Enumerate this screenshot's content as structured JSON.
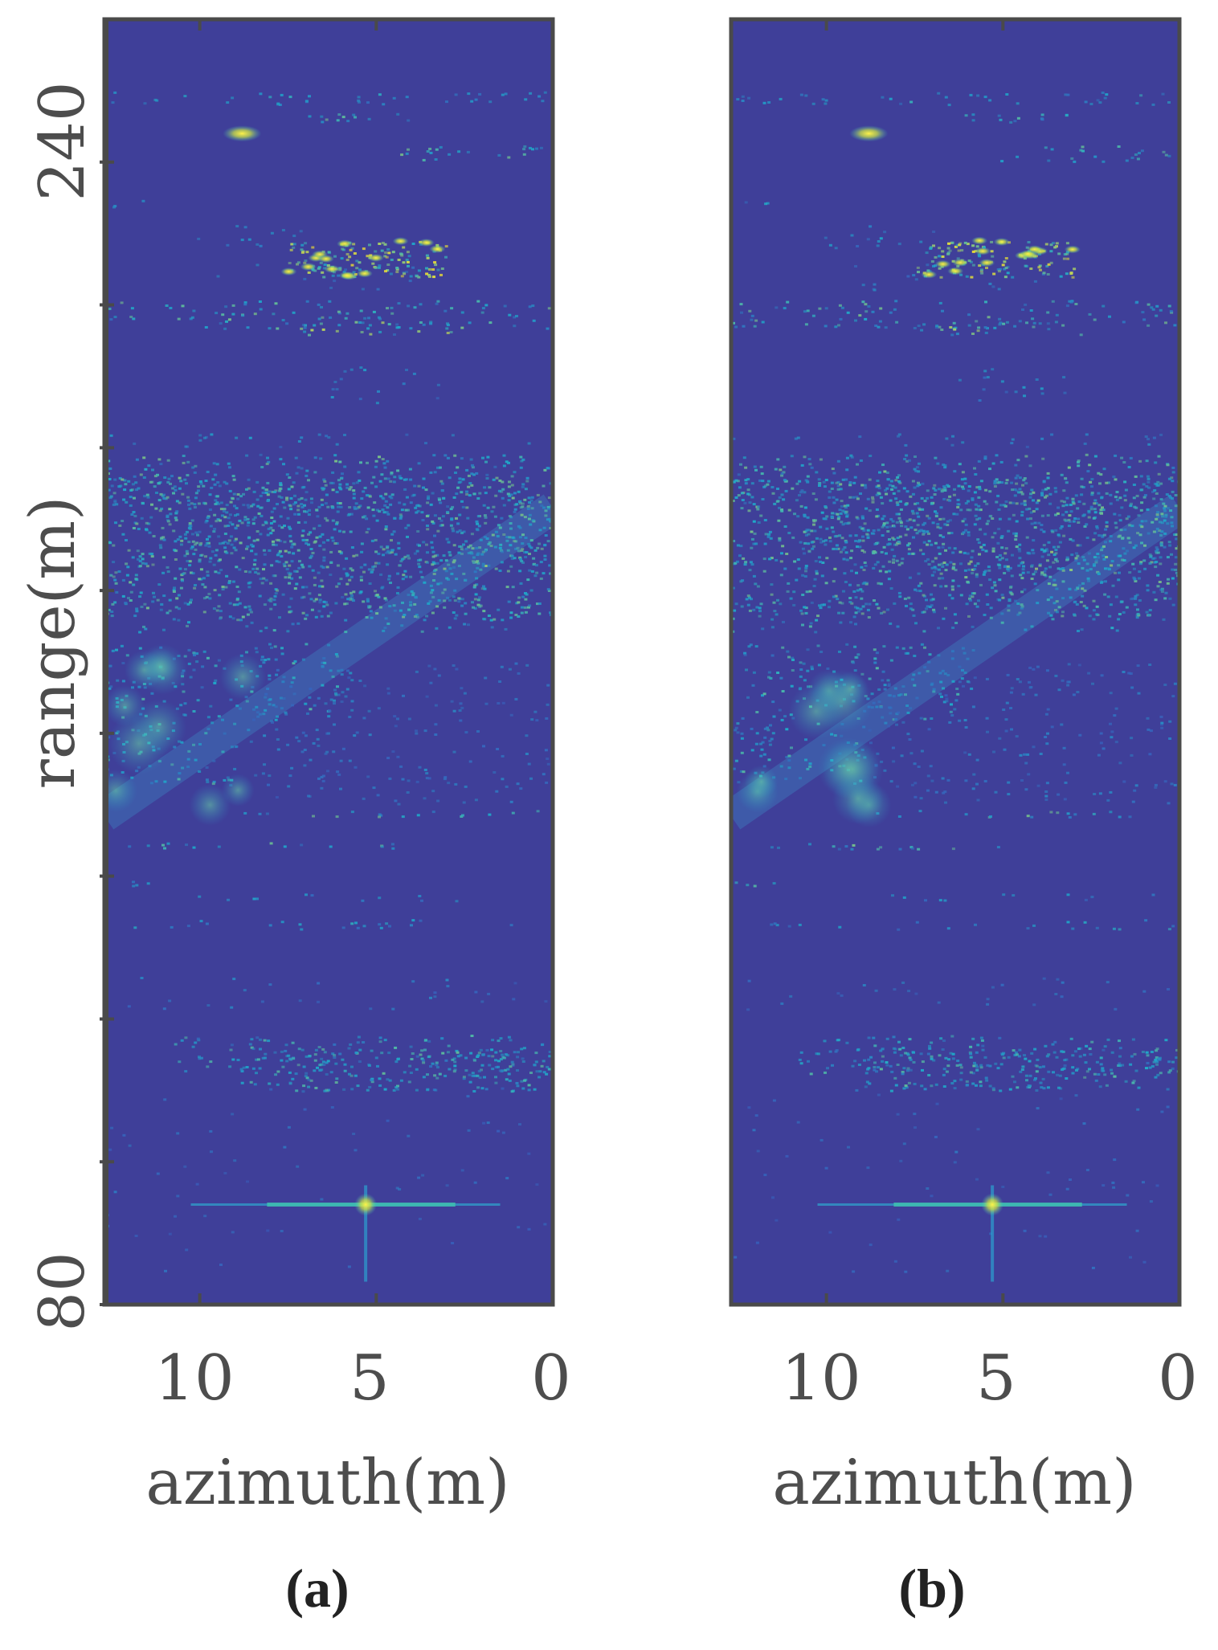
{
  "figure": {
    "panels": [
      {
        "label": "(a)",
        "xlabel": "azimuth(m)",
        "ylabel": "range(m)",
        "x_tick_labels": [
          "10",
          "5",
          "0"
        ],
        "y_tick_labels": [
          "240",
          "80"
        ]
      },
      {
        "label": "(b)",
        "xlabel": "azimuth(m)",
        "ylabel": "",
        "x_tick_labels": [
          "10",
          "5",
          "0"
        ],
        "y_tick_labels": []
      }
    ]
  },
  "chart_data": [
    {
      "type": "heatmap",
      "title": "",
      "panel_label": "(a)",
      "xlabel": "azimuth(m)",
      "ylabel": "range(m)",
      "xlim": [
        12.7,
        0
      ],
      "ylim": [
        80,
        260
      ],
      "x_ticks": [
        10,
        5,
        0
      ],
      "y_ticks": [
        240,
        80
      ],
      "y_minor_ticks": [
        100,
        120,
        140,
        160,
        180,
        200,
        220
      ],
      "grid": false,
      "colormap": "parula",
      "colors": {
        "background": "#3f3f99",
        "low": "#3c52b8",
        "mid": "#1fa9c9",
        "high": "#f0e032"
      },
      "features": [
        {
          "kind": "point_target",
          "azimuth": 5.3,
          "range": 94,
          "intensity": 1.0
        },
        {
          "kind": "bright_spot",
          "azimuth": 8.8,
          "range": 244,
          "intensity": 0.95
        },
        {
          "kind": "clutter_band",
          "range_min": 224,
          "range_max": 229,
          "azimuth_min": 3,
          "azimuth_max": 7.5,
          "intensity": 0.9
        },
        {
          "kind": "clutter_band",
          "range_min": 176,
          "range_max": 196,
          "azimuth_min": 0,
          "azimuth_max": 12.7,
          "intensity": 0.6
        },
        {
          "kind": "clutter_band",
          "range_min": 110,
          "range_max": 116,
          "azimuth_min": 0,
          "azimuth_max": 9,
          "intensity": 0.55
        }
      ]
    },
    {
      "type": "heatmap",
      "title": "",
      "panel_label": "(b)",
      "xlabel": "azimuth(m)",
      "ylabel": "",
      "xlim": [
        12.7,
        0
      ],
      "ylim": [
        80,
        260
      ],
      "x_ticks": [
        10,
        5,
        0
      ],
      "y_ticks": [],
      "grid": false,
      "colormap": "parula",
      "colors": {
        "background": "#3f3f99",
        "low": "#3c52b8",
        "mid": "#1fa9c9",
        "high": "#f0e032"
      },
      "features": [
        {
          "kind": "point_target",
          "azimuth": 5.3,
          "range": 94,
          "intensity": 1.0
        },
        {
          "kind": "bright_spot",
          "azimuth": 8.8,
          "range": 244,
          "intensity": 0.9
        },
        {
          "kind": "clutter_band",
          "range_min": 224,
          "range_max": 229,
          "azimuth_min": 3,
          "azimuth_max": 7.5,
          "intensity": 0.85
        },
        {
          "kind": "clutter_band",
          "range_min": 176,
          "range_max": 196,
          "azimuth_min": 0,
          "azimuth_max": 12.7,
          "intensity": 0.6
        },
        {
          "kind": "clutter_band",
          "range_min": 110,
          "range_max": 116,
          "azimuth_min": 0,
          "azimuth_max": 9,
          "intensity": 0.55
        }
      ]
    }
  ]
}
